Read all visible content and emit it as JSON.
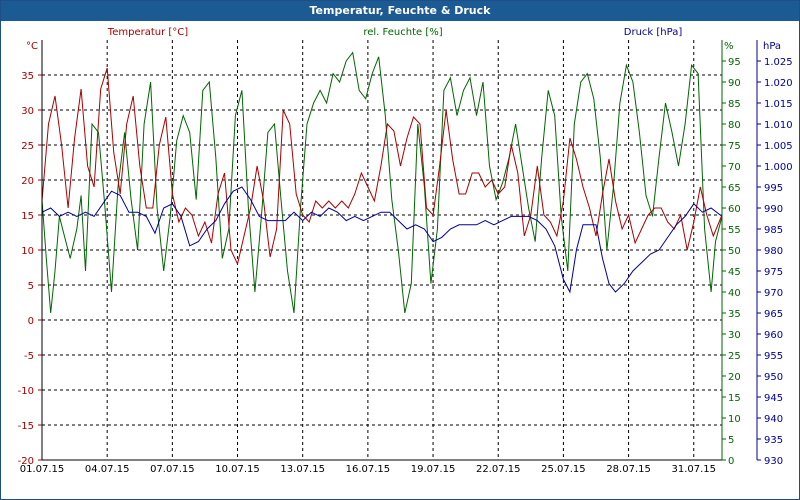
{
  "title": "Temperatur, Feuchte & Druck",
  "colors": {
    "temp": "#aa0000",
    "hum": "#006600",
    "press": "#000099",
    "title_bg": "#1c5a93"
  },
  "chart_data": {
    "type": "line",
    "grid": true,
    "axes": {
      "temp": {
        "unit": "°C",
        "series_label": "Temperatur [°C]",
        "range": [
          -20,
          40
        ],
        "ticks": [
          -20,
          -15,
          -10,
          -5,
          0,
          5,
          10,
          15,
          20,
          25,
          30,
          35
        ]
      },
      "hum": {
        "unit": "%",
        "series_label": "rel. Feuchte [%]",
        "range": [
          0,
          100
        ],
        "ticks": [
          0,
          5,
          10,
          15,
          20,
          25,
          30,
          35,
          40,
          45,
          50,
          55,
          60,
          65,
          70,
          75,
          80,
          85,
          90,
          95
        ]
      },
      "press": {
        "unit": "hPa",
        "series_label": "Druck [hPa]",
        "range": [
          930,
          1030
        ],
        "ticks": [
          "930",
          "935",
          "940",
          "945",
          "950",
          "955",
          "960",
          "965",
          "970",
          "975",
          "980",
          "985",
          "990",
          "995",
          "1.000",
          "1.005",
          "1.010",
          "1.015",
          "1.020",
          "1.025"
        ]
      }
    },
    "x_range_days": [
      1,
      32.3
    ],
    "x_ticks": [
      "01.07.15",
      "04.07.15",
      "07.07.15",
      "10.07.15",
      "13.07.15",
      "16.07.15",
      "19.07.15",
      "22.07.15",
      "25.07.15",
      "28.07.15",
      "31.07.15"
    ],
    "temp_series": [
      [
        1.0,
        17
      ],
      [
        1.3,
        28
      ],
      [
        1.6,
        32
      ],
      [
        1.9,
        25
      ],
      [
        2.2,
        16
      ],
      [
        2.5,
        26
      ],
      [
        2.8,
        33
      ],
      [
        3.1,
        22
      ],
      [
        3.4,
        19
      ],
      [
        3.7,
        33
      ],
      [
        4.0,
        36
      ],
      [
        4.3,
        24
      ],
      [
        4.6,
        18
      ],
      [
        4.9,
        28
      ],
      [
        5.2,
        32
      ],
      [
        5.5,
        22
      ],
      [
        5.8,
        16
      ],
      [
        6.1,
        16
      ],
      [
        6.4,
        25
      ],
      [
        6.7,
        29
      ],
      [
        7.0,
        18
      ],
      [
        7.3,
        14
      ],
      [
        7.6,
        16
      ],
      [
        7.9,
        15
      ],
      [
        8.2,
        12
      ],
      [
        8.5,
        14
      ],
      [
        8.8,
        11
      ],
      [
        9.1,
        18
      ],
      [
        9.4,
        21
      ],
      [
        9.7,
        10
      ],
      [
        10.0,
        8
      ],
      [
        10.3,
        12
      ],
      [
        10.6,
        16
      ],
      [
        10.9,
        22
      ],
      [
        11.2,
        17
      ],
      [
        11.5,
        9
      ],
      [
        11.8,
        13
      ],
      [
        12.1,
        30
      ],
      [
        12.4,
        28
      ],
      [
        12.7,
        18
      ],
      [
        13.0,
        15
      ],
      [
        13.3,
        14
      ],
      [
        13.6,
        17
      ],
      [
        13.9,
        16
      ],
      [
        14.2,
        17
      ],
      [
        14.5,
        16
      ],
      [
        14.8,
        17
      ],
      [
        15.1,
        16
      ],
      [
        15.4,
        18
      ],
      [
        15.7,
        21
      ],
      [
        16.0,
        19
      ],
      [
        16.3,
        17
      ],
      [
        16.6,
        22
      ],
      [
        16.9,
        28
      ],
      [
        17.2,
        27
      ],
      [
        17.5,
        22
      ],
      [
        17.8,
        26
      ],
      [
        18.1,
        29
      ],
      [
        18.4,
        28
      ],
      [
        18.7,
        16
      ],
      [
        19.0,
        15
      ],
      [
        19.3,
        22
      ],
      [
        19.6,
        30
      ],
      [
        19.9,
        23
      ],
      [
        20.2,
        18
      ],
      [
        20.5,
        18
      ],
      [
        20.8,
        21
      ],
      [
        21.1,
        21
      ],
      [
        21.4,
        19
      ],
      [
        21.7,
        20
      ],
      [
        22.0,
        18
      ],
      [
        22.3,
        19
      ],
      [
        22.6,
        25
      ],
      [
        22.9,
        21
      ],
      [
        23.2,
        12
      ],
      [
        23.5,
        15
      ],
      [
        23.8,
        22
      ],
      [
        24.1,
        15
      ],
      [
        24.4,
        14
      ],
      [
        24.7,
        12
      ],
      [
        25.0,
        17
      ],
      [
        25.3,
        26
      ],
      [
        25.6,
        23
      ],
      [
        25.9,
        19
      ],
      [
        26.2,
        16
      ],
      [
        26.5,
        12
      ],
      [
        26.8,
        18
      ],
      [
        27.1,
        23
      ],
      [
        27.4,
        17
      ],
      [
        27.7,
        13
      ],
      [
        28.0,
        15
      ],
      [
        28.3,
        11
      ],
      [
        28.6,
        13
      ],
      [
        28.9,
        15
      ],
      [
        29.2,
        16
      ],
      [
        29.5,
        16
      ],
      [
        29.8,
        14
      ],
      [
        30.1,
        13
      ],
      [
        30.4,
        15
      ],
      [
        30.7,
        10
      ],
      [
        31.0,
        14
      ],
      [
        31.3,
        19
      ],
      [
        31.6,
        15
      ],
      [
        31.9,
        12
      ],
      [
        32.3,
        15
      ]
    ],
    "hum_series": [
      [
        1.0,
        62
      ],
      [
        1.2,
        48
      ],
      [
        1.4,
        35
      ],
      [
        1.6,
        45
      ],
      [
        1.8,
        58
      ],
      [
        2.0,
        54
      ],
      [
        2.3,
        48
      ],
      [
        2.6,
        55
      ],
      [
        2.8,
        63
      ],
      [
        3.0,
        45
      ],
      [
        3.3,
        80
      ],
      [
        3.6,
        78
      ],
      [
        3.9,
        60
      ],
      [
        4.2,
        40
      ],
      [
        4.5,
        65
      ],
      [
        4.8,
        78
      ],
      [
        5.1,
        62
      ],
      [
        5.4,
        50
      ],
      [
        5.7,
        80
      ],
      [
        6.0,
        90
      ],
      [
        6.3,
        60
      ],
      [
        6.6,
        45
      ],
      [
        6.9,
        58
      ],
      [
        7.2,
        76
      ],
      [
        7.5,
        82
      ],
      [
        7.8,
        78
      ],
      [
        8.1,
        62
      ],
      [
        8.4,
        88
      ],
      [
        8.7,
        90
      ],
      [
        9.0,
        72
      ],
      [
        9.3,
        48
      ],
      [
        9.6,
        55
      ],
      [
        9.9,
        82
      ],
      [
        10.2,
        88
      ],
      [
        10.5,
        60
      ],
      [
        10.8,
        40
      ],
      [
        11.1,
        58
      ],
      [
        11.4,
        78
      ],
      [
        11.7,
        80
      ],
      [
        12.0,
        62
      ],
      [
        12.3,
        45
      ],
      [
        12.6,
        35
      ],
      [
        12.9,
        60
      ],
      [
        13.2,
        80
      ],
      [
        13.5,
        85
      ],
      [
        13.8,
        88
      ],
      [
        14.1,
        85
      ],
      [
        14.4,
        92
      ],
      [
        14.7,
        90
      ],
      [
        15.0,
        95
      ],
      [
        15.3,
        97
      ],
      [
        15.6,
        88
      ],
      [
        15.9,
        86
      ],
      [
        16.2,
        92
      ],
      [
        16.5,
        96
      ],
      [
        16.8,
        82
      ],
      [
        17.1,
        62
      ],
      [
        17.4,
        50
      ],
      [
        17.7,
        35
      ],
      [
        18.0,
        42
      ],
      [
        18.3,
        80
      ],
      [
        18.6,
        65
      ],
      [
        18.9,
        42
      ],
      [
        19.2,
        55
      ],
      [
        19.5,
        88
      ],
      [
        19.8,
        91
      ],
      [
        20.1,
        82
      ],
      [
        20.4,
        88
      ],
      [
        20.7,
        91
      ],
      [
        21.0,
        82
      ],
      [
        21.3,
        90
      ],
      [
        21.6,
        70
      ],
      [
        21.9,
        62
      ],
      [
        22.2,
        66
      ],
      [
        22.5,
        72
      ],
      [
        22.8,
        80
      ],
      [
        23.1,
        70
      ],
      [
        23.4,
        60
      ],
      [
        23.7,
        52
      ],
      [
        24.0,
        72
      ],
      [
        24.3,
        88
      ],
      [
        24.6,
        82
      ],
      [
        24.9,
        58
      ],
      [
        25.2,
        45
      ],
      [
        25.5,
        80
      ],
      [
        25.8,
        90
      ],
      [
        26.1,
        92
      ],
      [
        26.4,
        86
      ],
      [
        26.7,
        72
      ],
      [
        27.0,
        50
      ],
      [
        27.3,
        65
      ],
      [
        27.6,
        85
      ],
      [
        27.9,
        94
      ],
      [
        28.2,
        90
      ],
      [
        28.5,
        78
      ],
      [
        28.8,
        63
      ],
      [
        29.1,
        58
      ],
      [
        29.4,
        72
      ],
      [
        29.7,
        85
      ],
      [
        30.0,
        78
      ],
      [
        30.3,
        70
      ],
      [
        30.6,
        80
      ],
      [
        30.9,
        94
      ],
      [
        31.2,
        92
      ],
      [
        31.5,
        55
      ],
      [
        31.8,
        40
      ],
      [
        32.0,
        52
      ],
      [
        32.3,
        58
      ]
    ],
    "press_series": [
      [
        1.0,
        989
      ],
      [
        1.4,
        990
      ],
      [
        1.8,
        988
      ],
      [
        2.2,
        989
      ],
      [
        2.6,
        988
      ],
      [
        3.0,
        989
      ],
      [
        3.4,
        988
      ],
      [
        3.8,
        991
      ],
      [
        4.2,
        994
      ],
      [
        4.6,
        993
      ],
      [
        5.0,
        989
      ],
      [
        5.4,
        989
      ],
      [
        5.8,
        988
      ],
      [
        6.2,
        984
      ],
      [
        6.6,
        990
      ],
      [
        7.0,
        991
      ],
      [
        7.4,
        988
      ],
      [
        7.8,
        981
      ],
      [
        8.2,
        982
      ],
      [
        8.6,
        985
      ],
      [
        9.0,
        987
      ],
      [
        9.4,
        991
      ],
      [
        9.8,
        994
      ],
      [
        10.2,
        995
      ],
      [
        10.6,
        992
      ],
      [
        11.0,
        988
      ],
      [
        11.4,
        987
      ],
      [
        11.8,
        987
      ],
      [
        12.2,
        987
      ],
      [
        12.6,
        989
      ],
      [
        13.0,
        987
      ],
      [
        13.4,
        989
      ],
      [
        13.8,
        988
      ],
      [
        14.2,
        990
      ],
      [
        14.6,
        989
      ],
      [
        15.0,
        987
      ],
      [
        15.4,
        988
      ],
      [
        15.8,
        987
      ],
      [
        16.2,
        988
      ],
      [
        16.6,
        989
      ],
      [
        17.0,
        989
      ],
      [
        17.4,
        987
      ],
      [
        17.8,
        985
      ],
      [
        18.2,
        986
      ],
      [
        18.6,
        985
      ],
      [
        19.0,
        982
      ],
      [
        19.4,
        983
      ],
      [
        19.8,
        985
      ],
      [
        20.2,
        986
      ],
      [
        20.6,
        986
      ],
      [
        21.0,
        986
      ],
      [
        21.4,
        987
      ],
      [
        21.8,
        986
      ],
      [
        22.2,
        987
      ],
      [
        22.6,
        988
      ],
      [
        23.0,
        988
      ],
      [
        23.4,
        988
      ],
      [
        23.8,
        987
      ],
      [
        24.2,
        985
      ],
      [
        24.6,
        981
      ],
      [
        25.0,
        973
      ],
      [
        25.3,
        970
      ],
      [
        25.6,
        980
      ],
      [
        25.9,
        986
      ],
      [
        26.2,
        986
      ],
      [
        26.5,
        986
      ],
      [
        26.8,
        978
      ],
      [
        27.1,
        972
      ],
      [
        27.4,
        970
      ],
      [
        27.8,
        972
      ],
      [
        28.2,
        975
      ],
      [
        28.6,
        977
      ],
      [
        29.0,
        979
      ],
      [
        29.4,
        980
      ],
      [
        29.8,
        983
      ],
      [
        30.2,
        986
      ],
      [
        30.6,
        988
      ],
      [
        31.0,
        991
      ],
      [
        31.4,
        989
      ],
      [
        31.8,
        990
      ],
      [
        32.3,
        988
      ]
    ]
  }
}
